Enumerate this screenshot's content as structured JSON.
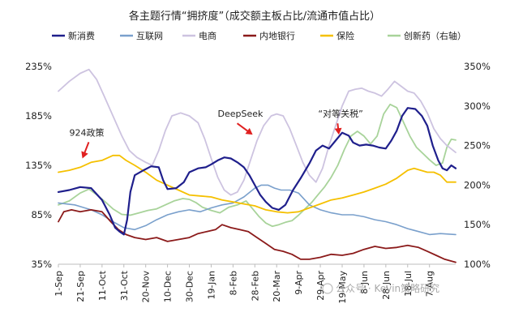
{
  "chart_data": {
    "type": "line",
    "title": "各主题行情“拥挤度”（成交额主板占比/流通市值占比）",
    "x_ticks": [
      "1-Sep",
      "21-Sep",
      "11-Oct",
      "31-Oct",
      "20-Nov",
      "10-Dec",
      "30-Dec",
      "19-Jan",
      "8-Feb",
      "28-Feb",
      "20-Mar",
      "9-Apr",
      "29-Apr",
      "19-May",
      "8-Jun",
      "28-Jun",
      "18-Jul",
      "7-Aug"
    ],
    "x_range": [
      0,
      364
    ],
    "left_axis": {
      "ticks": [
        "35%",
        "85%",
        "135%",
        "185%",
        "235%"
      ],
      "range": [
        35,
        235
      ]
    },
    "right_axis": {
      "label": "",
      "ticks": [
        "100%",
        "150%",
        "200%",
        "250%",
        "300%",
        "350%"
      ],
      "range": [
        100,
        350
      ]
    },
    "grid": false,
    "legend_position": "top",
    "series": [
      {
        "name": "新消费",
        "color": "#1f1f8c",
        "axis": "left",
        "width": 2.2,
        "points": [
          [
            0,
            108
          ],
          [
            10,
            110
          ],
          [
            20,
            113
          ],
          [
            30,
            112
          ],
          [
            40,
            100
          ],
          [
            47,
            85
          ],
          [
            52,
            72
          ],
          [
            56,
            68
          ],
          [
            60,
            65
          ],
          [
            63,
            80
          ],
          [
            66,
            108
          ],
          [
            70,
            125
          ],
          [
            78,
            130
          ],
          [
            85,
            134
          ],
          [
            92,
            133
          ],
          [
            96,
            120
          ],
          [
            100,
            111
          ],
          [
            108,
            112
          ],
          [
            115,
            118
          ],
          [
            120,
            128
          ],
          [
            128,
            132
          ],
          [
            135,
            133
          ],
          [
            140,
            136
          ],
          [
            146,
            140
          ],
          [
            152,
            143
          ],
          [
            158,
            142
          ],
          [
            164,
            138
          ],
          [
            170,
            133
          ],
          [
            175,
            125
          ],
          [
            180,
            115
          ],
          [
            185,
            105
          ],
          [
            190,
            98
          ],
          [
            196,
            92
          ],
          [
            202,
            90
          ],
          [
            208,
            95
          ],
          [
            215,
            110
          ],
          [
            222,
            122
          ],
          [
            230,
            137
          ],
          [
            236,
            150
          ],
          [
            242,
            155
          ],
          [
            248,
            152
          ],
          [
            254,
            160
          ],
          [
            260,
            168
          ],
          [
            266,
            165
          ],
          [
            270,
            158
          ],
          [
            276,
            155
          ],
          [
            282,
            156
          ],
          [
            288,
            155
          ],
          [
            294,
            153
          ],
          [
            300,
            152
          ],
          [
            305,
            160
          ],
          [
            310,
            170
          ],
          [
            315,
            185
          ],
          [
            320,
            193
          ],
          [
            327,
            192
          ],
          [
            333,
            185
          ],
          [
            338,
            175
          ],
          [
            343,
            155
          ],
          [
            348,
            140
          ],
          [
            352,
            132
          ],
          [
            356,
            130
          ],
          [
            360,
            135
          ],
          [
            364,
            132
          ]
        ]
      },
      {
        "name": "互联网",
        "color": "#7aa0cc",
        "axis": "left",
        "width": 1.6,
        "points": [
          [
            0,
            97
          ],
          [
            15,
            95
          ],
          [
            30,
            90
          ],
          [
            40,
            85
          ],
          [
            50,
            78
          ],
          [
            60,
            72
          ],
          [
            70,
            70
          ],
          [
            80,
            74
          ],
          [
            90,
            80
          ],
          [
            100,
            85
          ],
          [
            110,
            88
          ],
          [
            120,
            90
          ],
          [
            130,
            88
          ],
          [
            140,
            92
          ],
          [
            150,
            95
          ],
          [
            160,
            97
          ],
          [
            170,
            103
          ],
          [
            180,
            112
          ],
          [
            186,
            115
          ],
          [
            192,
            115
          ],
          [
            198,
            112
          ],
          [
            204,
            110
          ],
          [
            212,
            110
          ],
          [
            220,
            107
          ],
          [
            230,
            95
          ],
          [
            240,
            90
          ],
          [
            250,
            87
          ],
          [
            260,
            85
          ],
          [
            270,
            85
          ],
          [
            280,
            83
          ],
          [
            290,
            80
          ],
          [
            300,
            78
          ],
          [
            310,
            75
          ],
          [
            320,
            71
          ],
          [
            330,
            68
          ],
          [
            340,
            65
          ],
          [
            350,
            66
          ],
          [
            364,
            65
          ]
        ]
      },
      {
        "name": "电商",
        "color": "#cdc3e0",
        "axis": "left",
        "width": 1.8,
        "points": [
          [
            0,
            210
          ],
          [
            10,
            220
          ],
          [
            20,
            228
          ],
          [
            28,
            232
          ],
          [
            35,
            222
          ],
          [
            42,
            205
          ],
          [
            50,
            185
          ],
          [
            58,
            165
          ],
          [
            65,
            150
          ],
          [
            72,
            143
          ],
          [
            80,
            138
          ],
          [
            86,
            135
          ],
          [
            92,
            150
          ],
          [
            98,
            170
          ],
          [
            104,
            185
          ],
          [
            112,
            188
          ],
          [
            120,
            185
          ],
          [
            128,
            178
          ],
          [
            134,
            162
          ],
          [
            140,
            142
          ],
          [
            146,
            123
          ],
          [
            152,
            110
          ],
          [
            158,
            105
          ],
          [
            164,
            108
          ],
          [
            170,
            120
          ],
          [
            176,
            140
          ],
          [
            182,
            160
          ],
          [
            188,
            175
          ],
          [
            195,
            185
          ],
          [
            200,
            187
          ],
          [
            206,
            185
          ],
          [
            212,
            172
          ],
          [
            218,
            155
          ],
          [
            224,
            138
          ],
          [
            230,
            125
          ],
          [
            236,
            118
          ],
          [
            242,
            132
          ],
          [
            248,
            155
          ],
          [
            254,
            175
          ],
          [
            260,
            195
          ],
          [
            266,
            210
          ],
          [
            272,
            212
          ],
          [
            278,
            213
          ],
          [
            284,
            210
          ],
          [
            290,
            208
          ],
          [
            296,
            205
          ],
          [
            302,
            212
          ],
          [
            308,
            220
          ],
          [
            314,
            215
          ],
          [
            320,
            210
          ],
          [
            326,
            208
          ],
          [
            332,
            200
          ],
          [
            338,
            188
          ],
          [
            344,
            172
          ],
          [
            350,
            162
          ],
          [
            356,
            155
          ],
          [
            364,
            148
          ]
        ]
      },
      {
        "name": "内地银行",
        "color": "#8b1a1a",
        "axis": "left",
        "width": 1.8,
        "points": [
          [
            0,
            78
          ],
          [
            5,
            88
          ],
          [
            12,
            90
          ],
          [
            20,
            88
          ],
          [
            30,
            90
          ],
          [
            40,
            88
          ],
          [
            48,
            78
          ],
          [
            55,
            70
          ],
          [
            62,
            65
          ],
          [
            70,
            62
          ],
          [
            80,
            60
          ],
          [
            90,
            62
          ],
          [
            100,
            58
          ],
          [
            110,
            60
          ],
          [
            120,
            62
          ],
          [
            128,
            66
          ],
          [
            136,
            68
          ],
          [
            144,
            70
          ],
          [
            150,
            75
          ],
          [
            158,
            72
          ],
          [
            166,
            70
          ],
          [
            174,
            68
          ],
          [
            182,
            62
          ],
          [
            190,
            56
          ],
          [
            198,
            50
          ],
          [
            206,
            48
          ],
          [
            214,
            45
          ],
          [
            222,
            40
          ],
          [
            230,
            40
          ],
          [
            240,
            42
          ],
          [
            250,
            45
          ],
          [
            260,
            44
          ],
          [
            270,
            46
          ],
          [
            280,
            50
          ],
          [
            290,
            53
          ],
          [
            300,
            51
          ],
          [
            310,
            52
          ],
          [
            320,
            54
          ],
          [
            330,
            52
          ],
          [
            338,
            48
          ],
          [
            346,
            44
          ],
          [
            354,
            40
          ],
          [
            364,
            37
          ]
        ]
      },
      {
        "name": "保险",
        "color": "#f5c000",
        "axis": "left",
        "width": 1.8,
        "points": [
          [
            0,
            128
          ],
          [
            10,
            130
          ],
          [
            20,
            133
          ],
          [
            30,
            138
          ],
          [
            40,
            140
          ],
          [
            50,
            145
          ],
          [
            56,
            145
          ],
          [
            62,
            140
          ],
          [
            70,
            135
          ],
          [
            80,
            128
          ],
          [
            90,
            120
          ],
          [
            100,
            115
          ],
          [
            110,
            110
          ],
          [
            120,
            105
          ],
          [
            130,
            104
          ],
          [
            140,
            103
          ],
          [
            150,
            100
          ],
          [
            160,
            98
          ],
          [
            170,
            96
          ],
          [
            180,
            94
          ],
          [
            190,
            90
          ],
          [
            200,
            88
          ],
          [
            210,
            87
          ],
          [
            220,
            88
          ],
          [
            230,
            92
          ],
          [
            240,
            96
          ],
          [
            250,
            100
          ],
          [
            260,
            102
          ],
          [
            270,
            105
          ],
          [
            280,
            108
          ],
          [
            290,
            112
          ],
          [
            300,
            116
          ],
          [
            310,
            122
          ],
          [
            320,
            130
          ],
          [
            326,
            132
          ],
          [
            332,
            130
          ],
          [
            338,
            128
          ],
          [
            344,
            128
          ],
          [
            350,
            125
          ],
          [
            356,
            118
          ],
          [
            364,
            118
          ]
        ]
      },
      {
        "name": "创新药（右轴）",
        "color": "#a8d39a",
        "axis": "right",
        "width": 1.8,
        "points": [
          [
            0,
            175
          ],
          [
            10,
            180
          ],
          [
            20,
            190
          ],
          [
            28,
            195
          ],
          [
            35,
            188
          ],
          [
            42,
            180
          ],
          [
            50,
            170
          ],
          [
            58,
            163
          ],
          [
            66,
            162
          ],
          [
            74,
            165
          ],
          [
            82,
            168
          ],
          [
            90,
            170
          ],
          [
            98,
            175
          ],
          [
            106,
            180
          ],
          [
            114,
            183
          ],
          [
            120,
            182
          ],
          [
            126,
            178
          ],
          [
            132,
            172
          ],
          [
            140,
            168
          ],
          [
            148,
            165
          ],
          [
            156,
            172
          ],
          [
            164,
            175
          ],
          [
            172,
            180
          ],
          [
            178,
            170
          ],
          [
            184,
            160
          ],
          [
            190,
            152
          ],
          [
            196,
            148
          ],
          [
            202,
            150
          ],
          [
            208,
            153
          ],
          [
            214,
            155
          ],
          [
            220,
            162
          ],
          [
            226,
            170
          ],
          [
            232,
            178
          ],
          [
            238,
            188
          ],
          [
            244,
            198
          ],
          [
            250,
            210
          ],
          [
            256,
            225
          ],
          [
            262,
            245
          ],
          [
            268,
            262
          ],
          [
            274,
            268
          ],
          [
            280,
            262
          ],
          [
            286,
            252
          ],
          [
            292,
            262
          ],
          [
            298,
            290
          ],
          [
            304,
            302
          ],
          [
            310,
            298
          ],
          [
            316,
            280
          ],
          [
            322,
            262
          ],
          [
            328,
            248
          ],
          [
            334,
            240
          ],
          [
            340,
            232
          ],
          [
            346,
            225
          ],
          [
            352,
            228
          ],
          [
            356,
            248
          ],
          [
            360,
            258
          ],
          [
            364,
            257
          ]
        ]
      }
    ],
    "annotations": [
      {
        "text": "924政策",
        "at": [
          10,
          165
        ],
        "arrow_to": [
          22,
          142
        ]
      },
      {
        "text": "DeepSeek",
        "at": [
          146,
          184
        ],
        "arrow_to": [
          178,
          166
        ]
      },
      {
        "text": "“对等关税”",
        "at": [
          238,
          184
        ],
        "arrow_to": [
          257,
          166
        ]
      }
    ]
  },
  "watermark": "公众号 · Kevin策略研究"
}
